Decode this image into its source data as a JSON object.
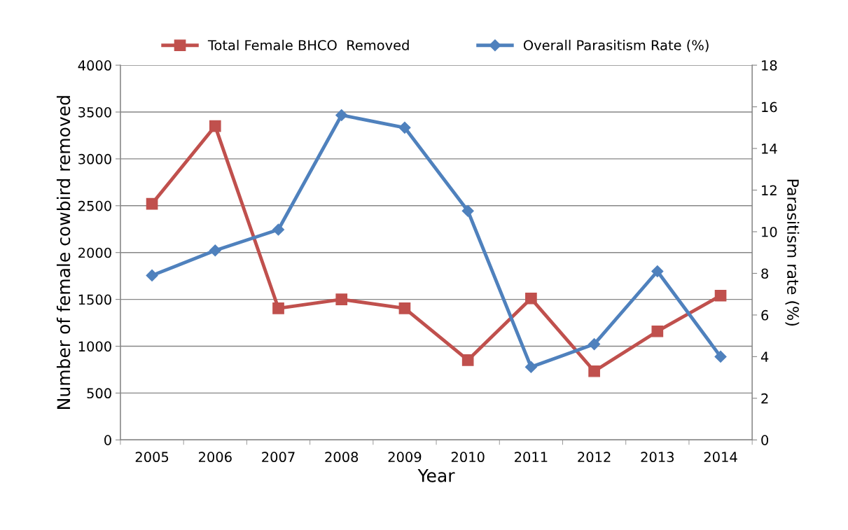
{
  "chart_data": {
    "type": "line",
    "xlabel": "Year",
    "ylabel": "Number of female cowbird removed",
    "y2label": "Parasitism rate (%)",
    "categories": [
      "2005",
      "2006",
      "2007",
      "2008",
      "2009",
      "2010",
      "2011",
      "2012",
      "2013",
      "2014"
    ],
    "series": [
      {
        "name": "Total Female BHCO  Removed",
        "color": "#c0504d",
        "marker": "square",
        "values": [
          2520,
          3350,
          1405,
          1500,
          1405,
          852,
          1510,
          733,
          1159,
          1540
        ]
      },
      {
        "name": "Overall Parasitism Rate (%)",
        "color": "#4f81bd",
        "marker": "diamond",
        "axis": "y2",
        "values": [
          7.9,
          9.1,
          10.1,
          15.6,
          15.0,
          11.0,
          3.5,
          4.6,
          8.1,
          4.0
        ]
      }
    ],
    "ylim": [
      0,
      4000
    ],
    "yticks": [
      0,
      500,
      1000,
      1500,
      2000,
      2500,
      3000,
      3500,
      4000
    ],
    "y2lim": [
      0,
      18
    ],
    "y2ticks": [
      0,
      2,
      4,
      6,
      8,
      10,
      12,
      14,
      16,
      18
    ],
    "grid": "y",
    "legend": "top",
    "line_style": "solid"
  }
}
